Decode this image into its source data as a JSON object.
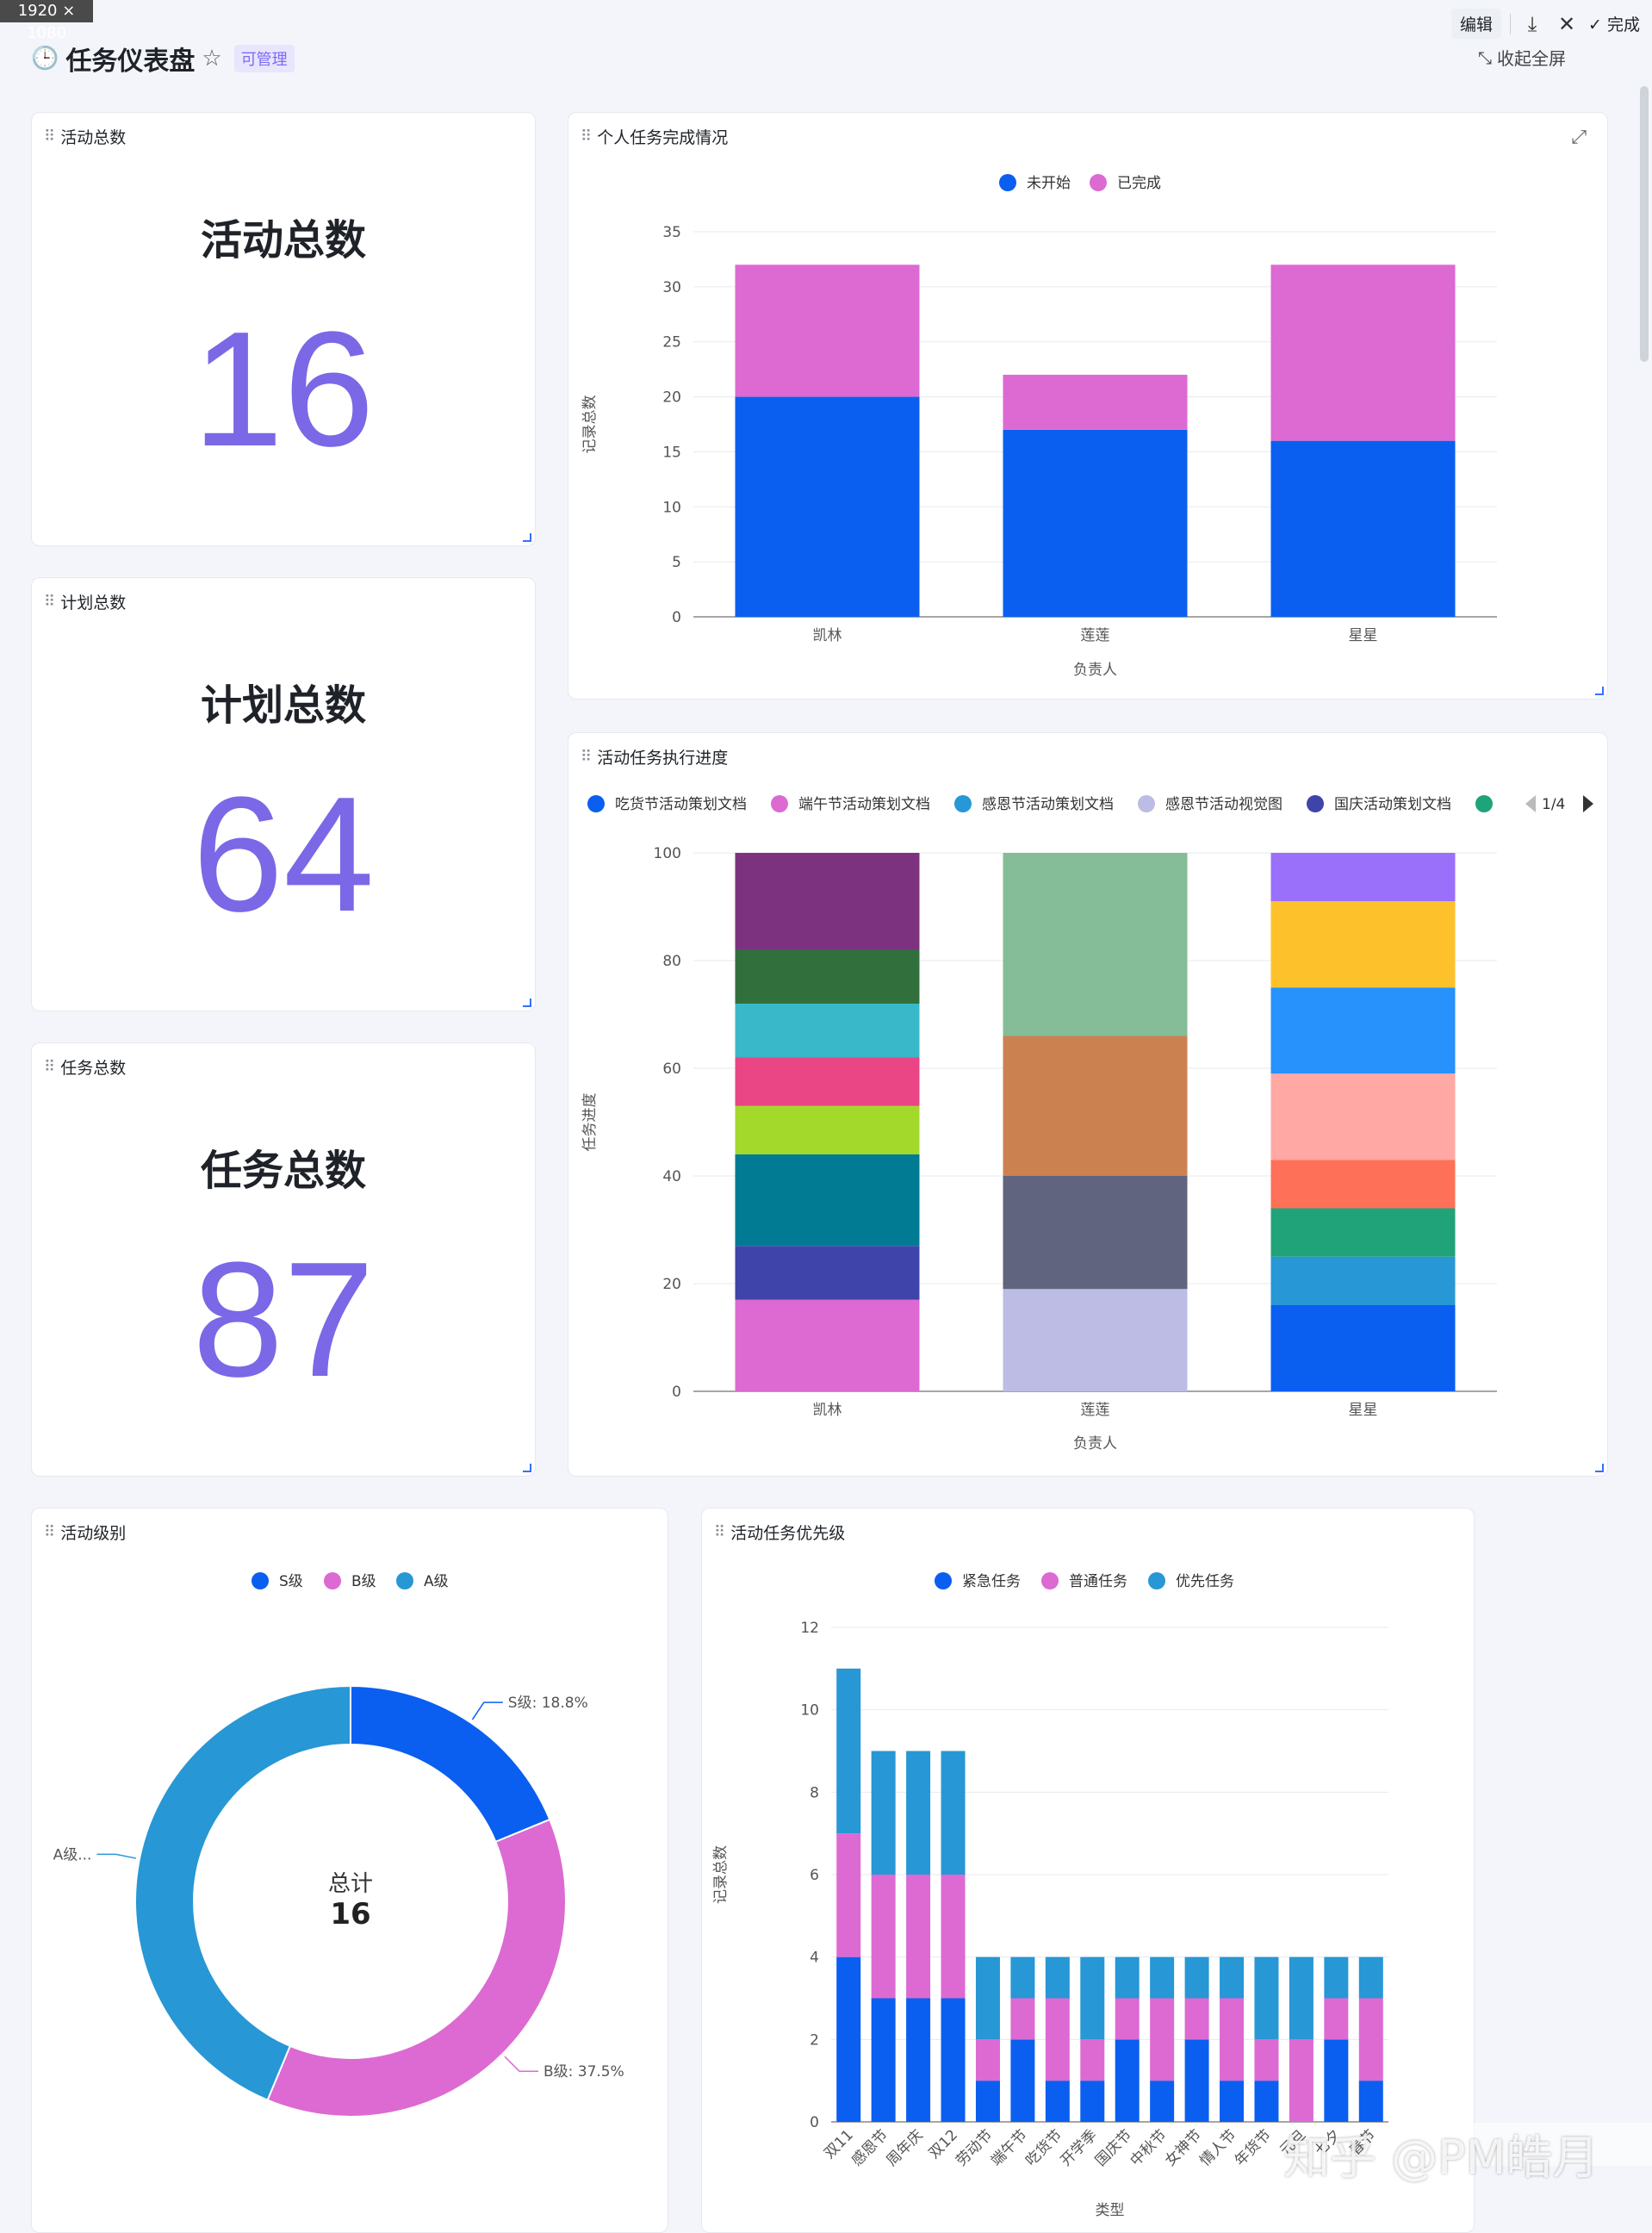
{
  "screen": {
    "size_badge": "1920 × 1080"
  },
  "header": {
    "title": "任务仪表盘",
    "badge": "可管理",
    "edit_label": "编辑",
    "done_label": "完成",
    "collapse_label": "收起全屏"
  },
  "cards": {
    "activity_total": {
      "title": "活动总数",
      "label": "活动总数",
      "value": "16"
    },
    "plan_total": {
      "title": "计划总数",
      "label": "计划总数",
      "value": "64"
    },
    "task_total": {
      "title": "任务总数",
      "label": "任务总数",
      "value": "87"
    },
    "personal": {
      "title": "个人任务完成情况"
    },
    "progress": {
      "title": "活动任务执行进度"
    },
    "level": {
      "title": "活动级别"
    },
    "priority": {
      "title": "活动任务优先级"
    }
  },
  "watermark": "知乎 @PM皓月",
  "chart_data": [
    {
      "id": "personal",
      "type": "bar",
      "stacked": true,
      "categories": [
        "凯林",
        "莲莲",
        "星星"
      ],
      "series": [
        {
          "name": "未开始",
          "color": "#0a5ff0",
          "values": [
            20,
            17,
            16
          ]
        },
        {
          "name": "已完成",
          "color": "#dc6ad2",
          "values": [
            12,
            5,
            16
          ]
        }
      ],
      "xlabel": "负责人",
      "ylabel": "记录总数",
      "ylim": [
        0,
        35
      ],
      "yticks": [
        0,
        5,
        10,
        15,
        20,
        25,
        30,
        35
      ],
      "legend": "top-center",
      "grid": true
    },
    {
      "id": "progress",
      "type": "bar",
      "stacked": true,
      "categories": [
        "凯林",
        "莲莲",
        "星星"
      ],
      "legend_items": [
        {
          "name": "吃货节活动策划文档",
          "color": "#0a5ff0"
        },
        {
          "name": "端午节活动策划文档",
          "color": "#dc6ad2"
        },
        {
          "name": "感恩节活动策划文档",
          "color": "#2797d5"
        },
        {
          "name": "感恩节活动视觉图",
          "color": "#bcbce4"
        },
        {
          "name": "国庆活动策划文档",
          "color": "#3f44aa"
        },
        {
          "name": "",
          "color": "#1fa37a"
        }
      ],
      "legend_page": "1/4",
      "stacks": [
        [
          {
            "color": "#dc6ad2",
            "value": 17
          },
          {
            "color": "#3f44aa",
            "value": 10
          },
          {
            "color": "#007b93",
            "value": 17
          },
          {
            "color": "#a3d92b",
            "value": 9
          },
          {
            "color": "#ea4585",
            "value": 9
          },
          {
            "color": "#39b8c9",
            "value": 10
          },
          {
            "color": "#31703c",
            "value": 10
          },
          {
            "color": "#7d3280",
            "value": 18
          }
        ],
        [
          {
            "color": "#bcbce4",
            "value": 19
          },
          {
            "color": "#61647e",
            "value": 21
          },
          {
            "color": "#cc8151",
            "value": 26
          },
          {
            "color": "#84bd97",
            "value": 34
          }
        ],
        [
          {
            "color": "#0a5ff0",
            "value": 16
          },
          {
            "color": "#2797d5",
            "value": 9
          },
          {
            "color": "#21a37a",
            "value": 9
          },
          {
            "color": "#ff7058",
            "value": 9
          },
          {
            "color": "#ffa8a4",
            "value": 16
          },
          {
            "color": "#2791fc",
            "value": 16
          },
          {
            "color": "#fdc22b",
            "value": 16
          },
          {
            "color": "#9a70fb",
            "value": 9
          }
        ]
      ],
      "xlabel": "负责人",
      "ylabel": "任务进度",
      "ylim": [
        0,
        100
      ],
      "yticks": [
        0,
        20,
        40,
        60,
        80,
        100
      ],
      "grid": true
    },
    {
      "id": "level",
      "type": "pie",
      "donut": true,
      "legend": [
        "S级",
        "B级",
        "A级"
      ],
      "slices": [
        {
          "name": "S级",
          "percent": 18.8,
          "color": "#0a5ff0",
          "label": "S级: 18.8%"
        },
        {
          "name": "B级",
          "percent": 37.5,
          "color": "#dc6ad2",
          "label": "B级: 37.5%"
        },
        {
          "name": "A级",
          "percent": 43.7,
          "color": "#2797d5",
          "label": "A级..."
        }
      ],
      "center_label": "总计",
      "center_value": "16"
    },
    {
      "id": "priority",
      "type": "bar",
      "stacked": true,
      "categories": [
        "双11",
        "感恩节",
        "周年庆",
        "双12",
        "劳动节",
        "端午节",
        "吃货节",
        "开学季",
        "国庆节",
        "中秋节",
        "女神节",
        "情人节",
        "年货节",
        "元旦",
        "七夕",
        "春节"
      ],
      "series": [
        {
          "name": "紧急任务",
          "color": "#0a5ff0",
          "values": [
            4,
            3,
            3,
            3,
            1,
            2,
            1,
            1,
            2,
            1,
            2,
            1,
            1,
            0,
            2,
            1
          ]
        },
        {
          "name": "普通任务",
          "color": "#dc6ad2",
          "values": [
            3,
            3,
            3,
            3,
            1,
            1,
            2,
            1,
            1,
            2,
            1,
            2,
            1,
            2,
            1,
            2
          ]
        },
        {
          "name": "优先任务",
          "color": "#2797d5",
          "values": [
            4,
            3,
            3,
            3,
            2,
            1,
            1,
            2,
            1,
            1,
            1,
            1,
            2,
            2,
            1,
            1
          ]
        }
      ],
      "xlabel": "类型",
      "ylabel": "记录总数",
      "ylim": [
        0,
        12
      ],
      "yticks": [
        0,
        2,
        4,
        6,
        8,
        10,
        12
      ],
      "legend": "top-center",
      "grid": true
    }
  ]
}
